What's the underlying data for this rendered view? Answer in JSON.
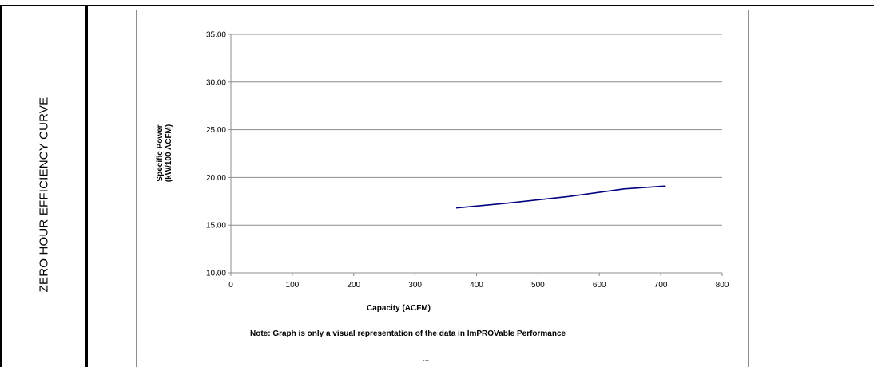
{
  "side_label": "ZERO HOUR EFFICIENCY CURVE",
  "chart_data": {
    "type": "line",
    "xlabel": "Capacity (ACFM)",
    "ylabel_lines": [
      "Specific Power",
      "(kW/100 ACFM)"
    ],
    "xlim": [
      0,
      800
    ],
    "ylim": [
      10,
      35
    ],
    "x_ticks": [
      0,
      100,
      200,
      300,
      400,
      500,
      600,
      700,
      800
    ],
    "y_ticks": [
      10,
      15,
      20,
      25,
      30,
      35
    ],
    "y_tick_labels": [
      "10.00",
      "15.00",
      "20.00",
      "25.00",
      "30.00",
      "35.00"
    ],
    "grid": true,
    "series": [
      {
        "color": "#000080",
        "x": [
          367,
          450,
          550,
          640,
          708
        ],
        "y": [
          16.8,
          17.3,
          18.0,
          18.8,
          19.1
        ]
      }
    ],
    "note": "Note:  Graph is only a visual representation of the data in ImPROVable Performance",
    "footer": "..."
  }
}
